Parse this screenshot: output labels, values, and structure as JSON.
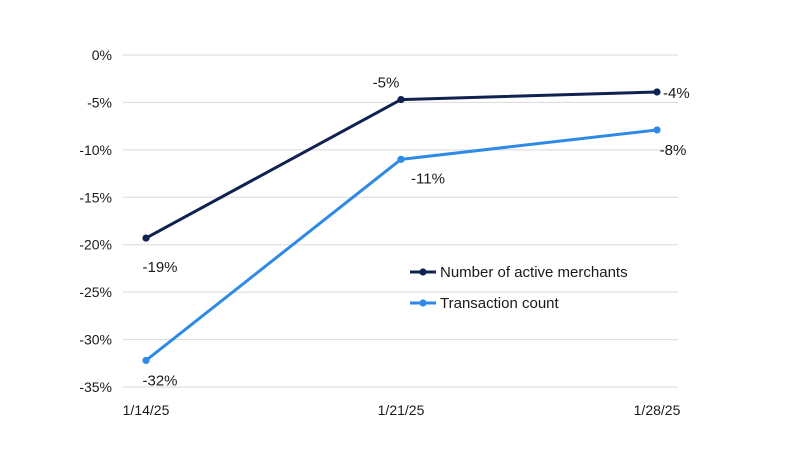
{
  "chart_data": {
    "type": "line",
    "title": "",
    "xlabel": "",
    "ylabel": "",
    "categories": [
      "1/14/25",
      "1/21/25",
      "1/28/25"
    ],
    "ylim": [
      -35,
      0
    ],
    "y_ticks": [
      0,
      -5,
      -10,
      -15,
      -20,
      -25,
      -30,
      -35
    ],
    "y_tick_labels": [
      "0%",
      "-5%",
      "-10%",
      "-15%",
      "-20%",
      "-25%",
      "-30%",
      "-35%"
    ],
    "grid": true,
    "legend_position": "center-right",
    "series": [
      {
        "name": "Number of active merchants",
        "color": "#0f2250",
        "values": [
          -19.3,
          -4.7,
          -3.9
        ],
        "labels": [
          "-19%",
          "-5%",
          "-4%"
        ]
      },
      {
        "name": "Transaction count",
        "color": "#2e8ae6",
        "values": [
          -32.2,
          -11,
          -7.9
        ],
        "labels": [
          "-32%",
          "-11%",
          "-8%"
        ]
      }
    ]
  }
}
